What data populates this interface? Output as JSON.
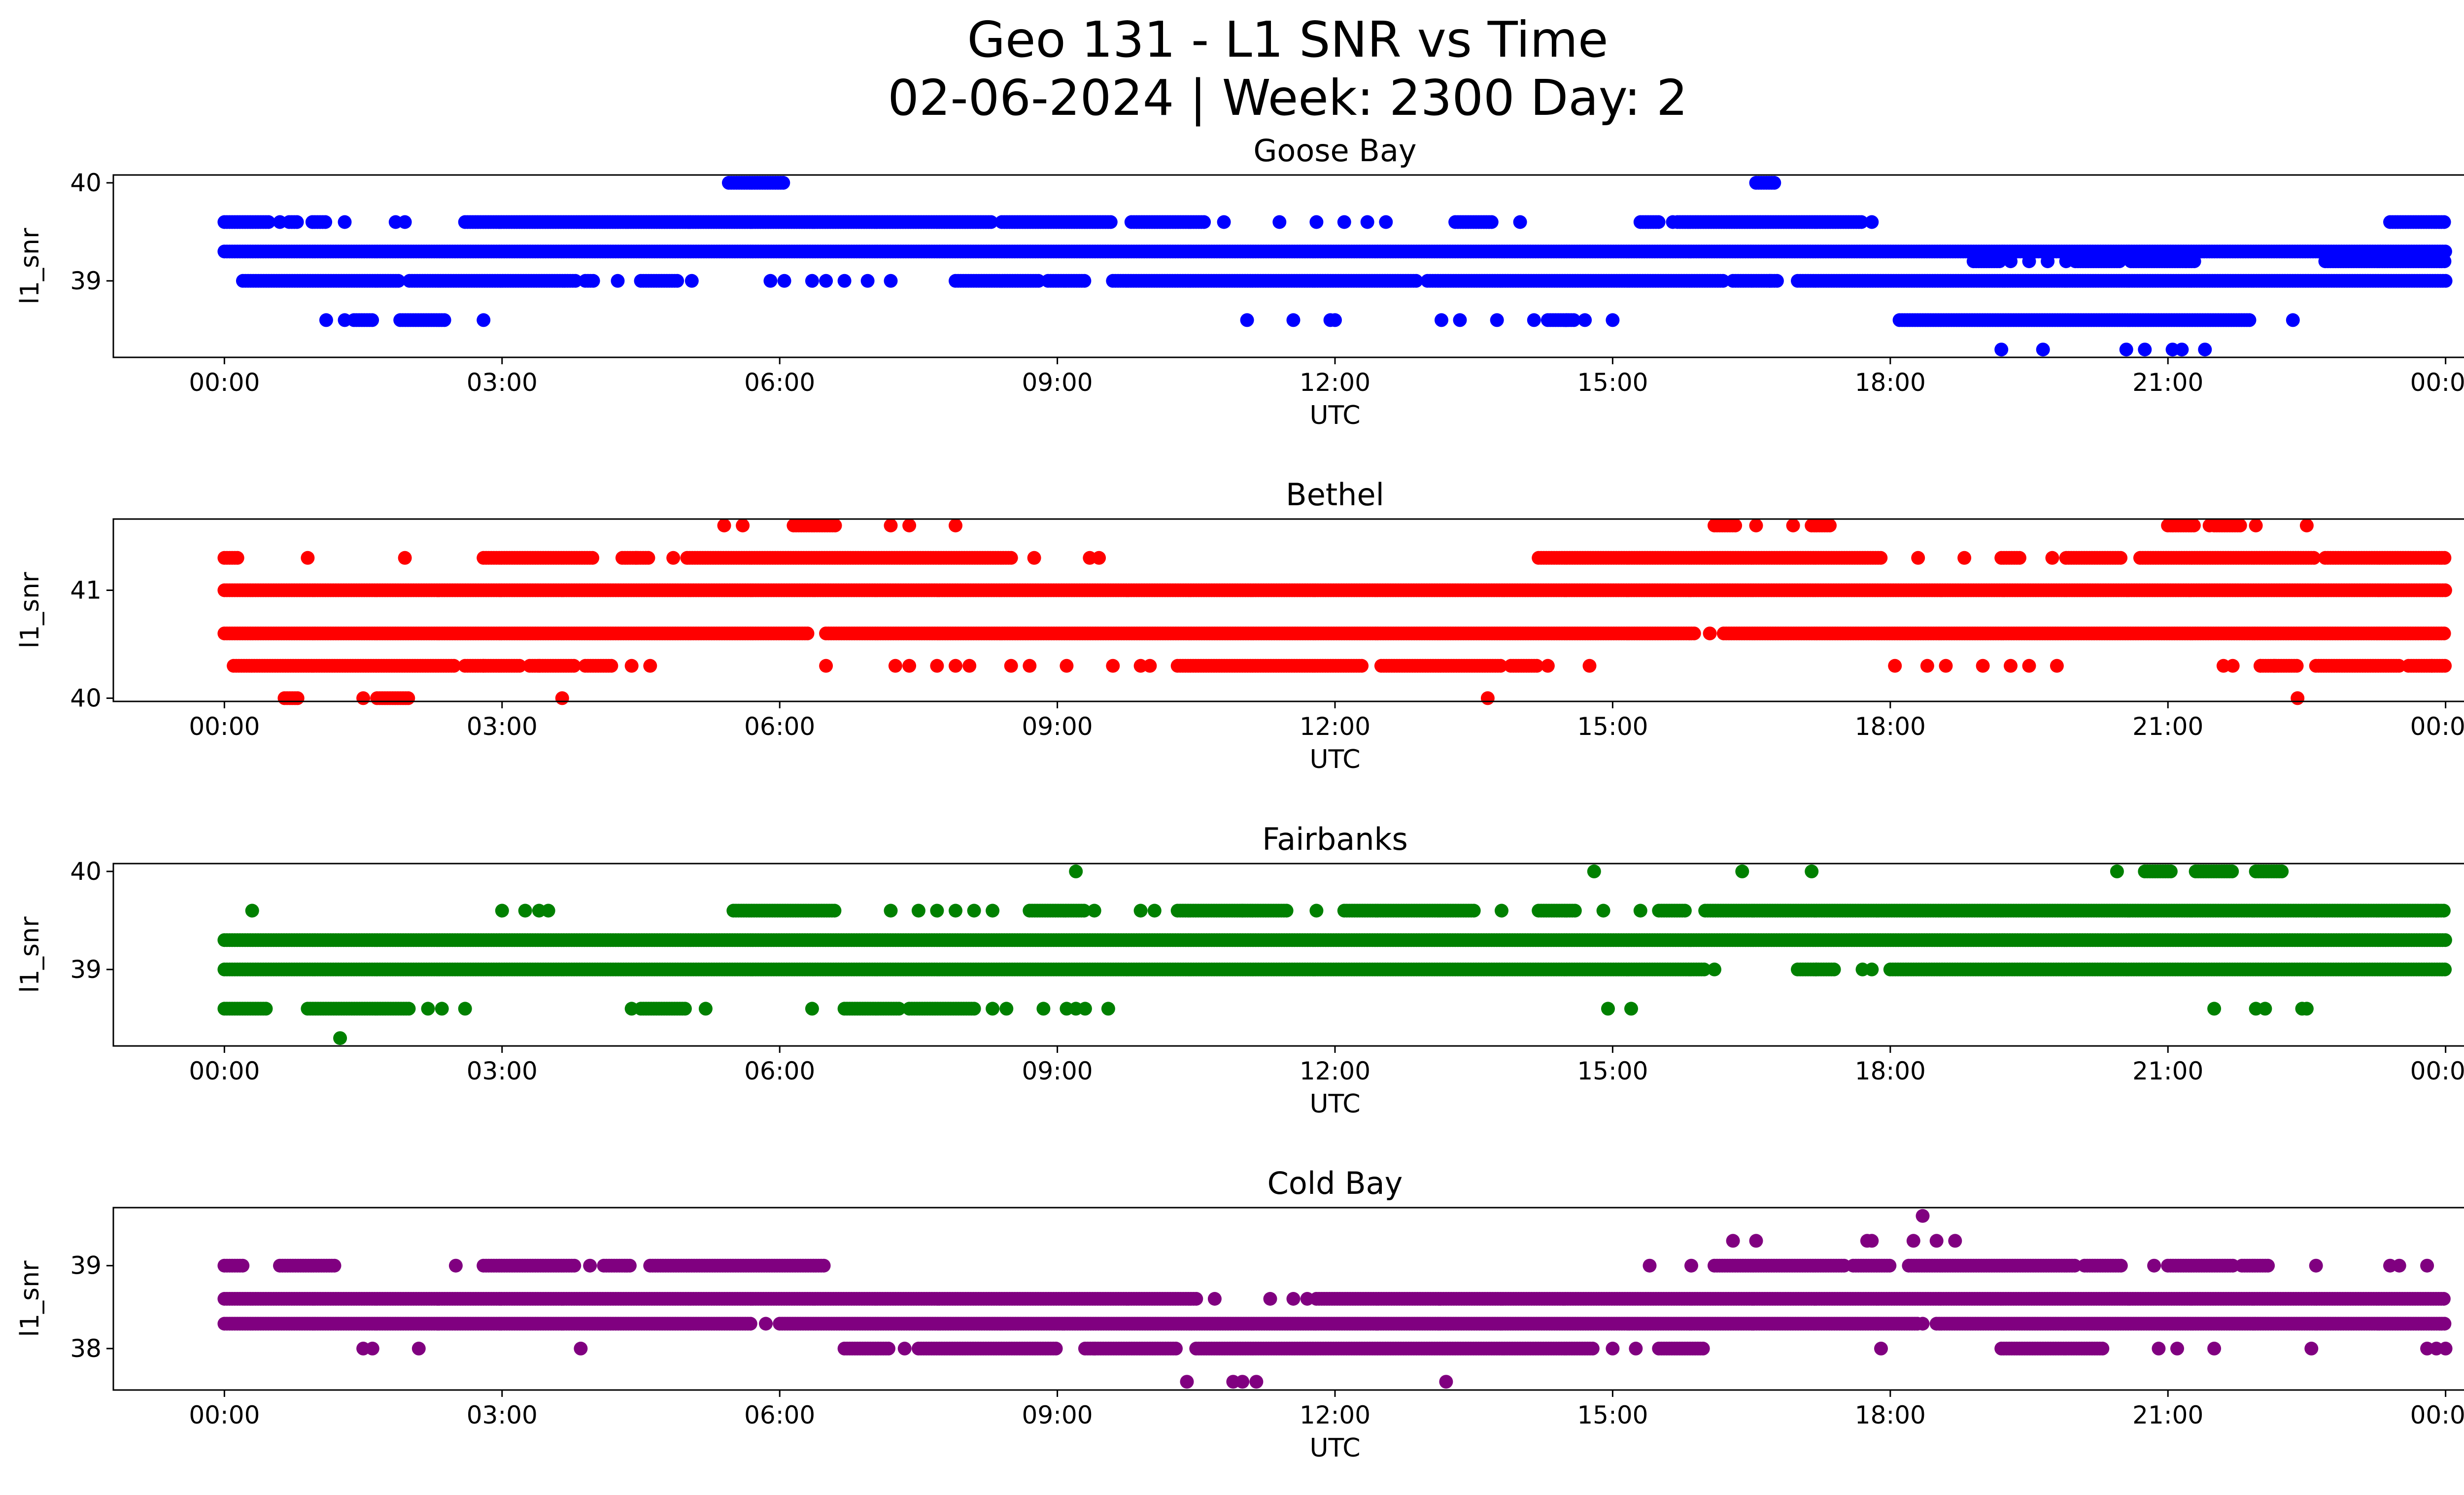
{
  "title_line1": "Geo 131 - L1 SNR vs Time",
  "title_line2": "02-06-2024 | Week: 2300 Day: 2",
  "chart_data": [
    {
      "type": "scatter",
      "title": "Goose Bay",
      "xlabel": "UTC",
      "ylabel": "l1_snr",
      "color": "#0000ff",
      "x_ticks": [
        "00:00",
        "03:00",
        "06:00",
        "09:00",
        "12:00",
        "15:00",
        "18:00",
        "21:00",
        "00:00"
      ],
      "xlim_hours": [
        -1.2,
        25.2
      ],
      "y_ticks": [
        39,
        40
      ],
      "ylim": [
        38.22,
        40.08
      ],
      "bands": [
        {
          "y": 39.3,
          "segments": [
            [
              0.0,
              24.0
            ]
          ]
        },
        {
          "y": 39.6,
          "segments": [
            [
              0.0,
              0.5
            ],
            [
              0.7,
              0.8
            ],
            [
              0.95,
              1.1
            ],
            [
              2.6,
              8.3
            ],
            [
              8.4,
              9.6
            ],
            [
              9.8,
              10.6
            ],
            [
              13.3,
              13.7
            ],
            [
              15.3,
              15.5
            ],
            [
              15.7,
              17.7
            ],
            [
              23.4,
              23.9
            ],
            [
              23.9,
              24.0
            ]
          ],
          "singles": [
            0.6,
            1.3,
            1.85,
            1.95,
            10.8,
            11.4,
            11.8,
            12.1,
            12.35,
            12.55,
            14.0,
            15.65,
            17.8
          ]
        },
        {
          "y": 39.0,
          "segments": [
            [
              0.2,
              1.9
            ],
            [
              2.0,
              3.8
            ],
            [
              3.9,
              4.0
            ],
            [
              4.5,
              4.9
            ],
            [
              7.9,
              8.8
            ],
            [
              8.9,
              9.3
            ],
            [
              9.6,
              12.9
            ],
            [
              13.0,
              16.2
            ],
            [
              16.3,
              16.8
            ],
            [
              17.0,
              24.0
            ]
          ],
          "singles": [
            4.25,
            5.05,
            5.9,
            6.05,
            6.35,
            6.5,
            6.7,
            6.95,
            7.2,
            16.7
          ]
        },
        {
          "y": 39.2,
          "segments": [
            [
              18.9,
              19.2
            ],
            [
              20.0,
              20.5
            ],
            [
              20.6,
              21.2
            ],
            [
              21.2,
              21.3
            ],
            [
              22.7,
              24.0
            ]
          ],
          "singles": [
            19.3,
            19.5,
            19.7,
            19.9
          ]
        },
        {
          "y": 38.6,
          "segments": [
            [
              1.4,
              1.6
            ],
            [
              1.9,
              2.4
            ],
            [
              14.3,
              14.6
            ],
            [
              18.1,
              21.9
            ]
          ],
          "singles": [
            1.1,
            1.3,
            2.8,
            11.05,
            11.55,
            11.95,
            12.0,
            13.15,
            13.35,
            13.75,
            14.15,
            14.5,
            14.7,
            15.0,
            22.35
          ]
        },
        {
          "y": 38.3,
          "segments": [],
          "singles": [
            19.2,
            19.65,
            20.55,
            20.75,
            21.05,
            21.15,
            21.4
          ]
        },
        {
          "y": 40.0,
          "segments": [
            [
              5.45,
              6.05
            ],
            [
              16.55,
              16.75
            ]
          ],
          "singles": []
        }
      ]
    },
    {
      "type": "scatter",
      "title": "Bethel",
      "xlabel": "UTC",
      "ylabel": "l1_snr",
      "color": "#ff0000",
      "x_ticks": [
        "00:00",
        "03:00",
        "06:00",
        "09:00",
        "12:00",
        "15:00",
        "18:00",
        "21:00",
        "00:00"
      ],
      "xlim_hours": [
        -1.2,
        25.2
      ],
      "y_ticks": [
        40,
        41
      ],
      "ylim": [
        39.97,
        41.66
      ],
      "bands": [
        {
          "y": 41.0,
          "segments": [
            [
              0.0,
              24.0
            ]
          ]
        },
        {
          "y": 40.6,
          "segments": [
            [
              0.0,
              6.3
            ],
            [
              6.5,
              15.9
            ],
            [
              16.2,
              24.0
            ]
          ],
          "singles": [
            16.05
          ]
        },
        {
          "y": 40.3,
          "segments": [
            [
              0.1,
              2.5
            ],
            [
              2.6,
              3.2
            ],
            [
              3.3,
              3.8
            ],
            [
              3.9,
              4.2
            ],
            [
              10.3,
              12.3
            ],
            [
              12.5,
              13.8
            ],
            [
              13.9,
              14.2
            ],
            [
              22.0,
              22.4
            ],
            [
              22.6,
              23.5
            ],
            [
              23.6,
              24.0
            ]
          ],
          "singles": [
            2.8,
            3.4,
            4.4,
            4.6,
            6.5,
            7.25,
            7.4,
            7.7,
            7.9,
            8.05,
            8.5,
            8.7,
            9.1,
            9.6,
            9.9,
            10.0,
            14.3,
            14.75,
            18.05,
            18.4,
            18.6,
            19.0,
            19.3,
            19.5,
            19.8,
            21.6,
            21.7,
            22.0,
            22.15,
            23.85
          ]
        },
        {
          "y": 41.3,
          "segments": [
            [
              0.0,
              0.15
            ],
            [
              2.8,
              4.0
            ],
            [
              4.3,
              4.6
            ],
            [
              5.0,
              8.5
            ],
            [
              14.2,
              17.9
            ],
            [
              19.2,
              19.4
            ],
            [
              19.9,
              20.5
            ],
            [
              20.7,
              22.6
            ],
            [
              22.7,
              24.0
            ]
          ],
          "singles": [
            0.9,
            1.95,
            4.45,
            4.85,
            8.75,
            9.35,
            9.45,
            18.3,
            18.8,
            19.75
          ]
        },
        {
          "y": 41.6,
          "segments": [
            [
              6.15,
              6.6
            ],
            [
              16.1,
              16.35
            ],
            [
              17.15,
              17.35
            ],
            [
              21.0,
              21.3
            ],
            [
              21.5,
              21.8
            ]
          ],
          "singles": [
            5.4,
            5.6,
            7.2,
            7.4,
            7.9,
            16.55,
            16.95,
            21.05,
            21.45,
            21.95,
            22.5
          ]
        },
        {
          "y": 40.0,
          "segments": [
            [
              0.65,
              0.8
            ],
            [
              1.65,
              2.0
            ]
          ],
          "singles": [
            1.5,
            3.65,
            13.65,
            22.4
          ]
        }
      ]
    },
    {
      "type": "scatter",
      "title": "Fairbanks",
      "xlabel": "UTC",
      "ylabel": "l1_snr",
      "color": "#008000",
      "x_ticks": [
        "00:00",
        "03:00",
        "06:00",
        "09:00",
        "12:00",
        "15:00",
        "18:00",
        "21:00",
        "00:00"
      ],
      "xlim_hours": [
        -1.2,
        25.2
      ],
      "y_ticks": [
        39,
        40
      ],
      "ylim": [
        38.22,
        40.08
      ],
      "bands": [
        {
          "y": 39.3,
          "segments": [
            [
              0.0,
              24.0
            ]
          ]
        },
        {
          "y": 39.0,
          "segments": [
            [
              0.0,
              16.0
            ],
            [
              17.0,
              17.4
            ],
            [
              18.0,
              24.0
            ]
          ],
          "singles": [
            16.1,
            17.2,
            17.7,
            17.8
          ]
        },
        {
          "y": 39.6,
          "segments": [
            [
              5.5,
              6.6
            ],
            [
              8.7,
              9.3
            ],
            [
              10.3,
              11.0
            ],
            [
              11.0,
              11.5
            ],
            [
              12.1,
              13.5
            ],
            [
              14.2,
              14.6
            ],
            [
              15.5,
              15.8
            ],
            [
              16.0,
              24.0
            ]
          ],
          "singles": [
            0.3,
            3.0,
            3.25,
            3.4,
            3.5,
            7.2,
            7.5,
            7.7,
            7.9,
            8.1,
            8.3,
            9.4,
            9.9,
            10.05,
            11.8,
            13.8,
            14.9,
            15.3,
            23.9
          ]
        },
        {
          "y": 38.6,
          "segments": [
            [
              0.0,
              0.45
            ],
            [
              0.9,
              2.0
            ],
            [
              4.5,
              5.0
            ],
            [
              6.7,
              7.3
            ],
            [
              7.4,
              8.1
            ]
          ],
          "singles": [
            2.2,
            2.35,
            2.6,
            4.4,
            5.2,
            6.35,
            8.3,
            8.45,
            8.85,
            9.1,
            9.2,
            9.3,
            9.55,
            14.95,
            15.2,
            21.5,
            21.95,
            22.05,
            22.45,
            22.5
          ]
        },
        {
          "y": 40.0,
          "segments": [
            [
              20.75,
              21.05
            ],
            [
              21.3,
              21.7
            ],
            [
              21.95,
              22.25
            ]
          ],
          "singles": [
            9.2,
            14.8,
            16.4,
            17.15,
            20.45
          ]
        },
        {
          "y": 38.3,
          "segments": [],
          "singles": [
            1.25
          ]
        }
      ]
    },
    {
      "type": "scatter",
      "title": "Cold Bay",
      "xlabel": "UTC",
      "ylabel": "l1_snr",
      "color": "#800080",
      "x_ticks": [
        "00:00",
        "03:00",
        "06:00",
        "09:00",
        "12:00",
        "15:00",
        "18:00",
        "21:00",
        "00:00"
      ],
      "xlim_hours": [
        -1.2,
        25.2
      ],
      "y_ticks": [
        38,
        39
      ],
      "ylim": [
        37.5,
        39.7
      ],
      "bands": [
        {
          "y": 38.6,
          "segments": [
            [
              0.0,
              10.5
            ],
            [
              11.8,
              24.0
            ]
          ],
          "singles": [
            10.7,
            11.3,
            11.55,
            11.7
          ]
        },
        {
          "y": 38.3,
          "segments": [
            [
              0.0,
              5.7
            ],
            [
              6.0,
              18.3
            ],
            [
              18.5,
              24.0
            ]
          ],
          "singles": [
            5.85,
            18.35
          ]
        },
        {
          "y": 39.0,
          "segments": [
            [
              0.0,
              0.2
            ],
            [
              0.6,
              1.2
            ],
            [
              2.8,
              3.8
            ],
            [
              4.1,
              4.4
            ],
            [
              4.6,
              6.5
            ],
            [
              16.1,
              17.5
            ],
            [
              17.6,
              18.0
            ],
            [
              18.2,
              20.0
            ],
            [
              20.1,
              20.5
            ],
            [
              21.0,
              21.7
            ],
            [
              21.8,
              22.1
            ]
          ],
          "singles": [
            2.5,
            3.95,
            15.4,
            15.85,
            20.85,
            22.6,
            23.4,
            23.5,
            23.8
          ]
        },
        {
          "y": 38.0,
          "segments": [
            [
              6.7,
              7.2
            ],
            [
              7.5,
              9.0
            ],
            [
              9.3,
              10.3
            ],
            [
              10.5,
              14.8
            ],
            [
              15.5,
              16.0
            ],
            [
              19.2,
              20.3
            ]
          ],
          "singles": [
            1.5,
            1.6,
            2.1,
            3.85,
            7.35,
            9.4,
            15.0,
            15.25,
            17.9,
            20.9,
            21.1,
            21.5,
            22.55,
            23.8,
            23.9,
            24.0
          ]
        },
        {
          "y": 39.3,
          "segments": [],
          "singles": [
            16.3,
            16.55,
            17.75,
            17.8,
            18.25,
            18.5,
            18.7
          ]
        },
        {
          "y": 39.6,
          "segments": [],
          "singles": [
            18.35
          ]
        },
        {
          "y": 37.6,
          "segments": [],
          "singles": [
            10.4,
            10.9,
            11.0,
            11.15,
            13.2
          ]
        }
      ]
    }
  ]
}
